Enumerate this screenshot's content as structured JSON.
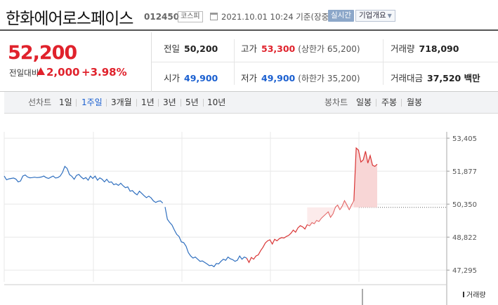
{
  "header": {
    "stock_name": "한화에어로스페이스",
    "stock_code": "012450",
    "market": "코스피",
    "datetime": "2021.10.01 10:24 기준(장중)",
    "realtime_label": "실시간",
    "overview_label": "기업개요"
  },
  "quote": {
    "price": "52,200",
    "change_label": "전일대비",
    "change": "2,000",
    "change_pct": "+3.98%",
    "prev_close_label": "전일",
    "prev_close": "50,200",
    "high_label": "고가",
    "high": "53,300",
    "upper_limit": "(상한가 65,200)",
    "volume_label": "거래량",
    "volume": "718,090",
    "open_label": "시가",
    "open": "49,900",
    "low_label": "저가",
    "low": "49,900",
    "lower_limit": "(하한가 35,200)",
    "trade_value_label": "거래대금",
    "trade_value": "37,520 백만"
  },
  "period_bar": {
    "line_label": "선차트",
    "line_periods": [
      "1일",
      "1주일",
      "3개월",
      "1년",
      "3년",
      "5년",
      "10년"
    ],
    "active_period": "1주일",
    "candle_label": "봉차트",
    "candle_periods": [
      "일봉",
      "주봉",
      "월봉"
    ]
  },
  "colors": {
    "up": "#e0222c",
    "down": "#1a5fd0",
    "line_blue": "#2f6fbf",
    "line_red": "#d93434"
  },
  "chart_data": {
    "type": "line",
    "title": "",
    "xlabel": "",
    "ylabel": "",
    "y_ticks": [
      "53,405",
      "51,877",
      "50,350",
      "48,822",
      "47,295"
    ],
    "ylim": [
      46750,
      53700
    ],
    "baseline": 50200,
    "volume_label": "거래량",
    "grid": true,
    "series": [
      {
        "values": [
          51650,
          51480,
          51520,
          51540,
          51560,
          51510,
          51380,
          51420,
          51650,
          51700,
          51610,
          51570,
          51580,
          51600,
          51580,
          51590,
          51610,
          51650,
          51580,
          51540,
          51600,
          51650,
          51560,
          51580,
          51650,
          51820,
          52100,
          52000,
          51720,
          51640,
          51500,
          51680,
          51730,
          51610,
          51520,
          51580,
          51460,
          51650,
          51540,
          51650,
          51460,
          51570,
          51500,
          51380,
          51500,
          51360,
          51380,
          51250,
          51290,
          51220,
          51320,
          51200,
          51110,
          51150,
          50950,
          50980,
          50860,
          50780,
          50950,
          50850,
          50740,
          50650,
          50720,
          50640,
          50500,
          50430,
          50480,
          50500,
          50400,
          50220,
          49650,
          49500,
          49380,
          49150,
          48950,
          48850,
          48600,
          48570,
          48400,
          48100,
          47950,
          47850,
          47900,
          47800,
          47700,
          47720,
          47650,
          47580,
          47500,
          47520,
          47450,
          47600,
          47580,
          47700,
          47800,
          47750,
          47900,
          47820,
          47780,
          47700,
          47750,
          47950,
          47800,
          47900,
          47850,
          47650,
          47880,
          47800,
          47950,
          48000,
          48200,
          48350,
          48550,
          48650,
          48700,
          48500,
          48720,
          48650,
          48750,
          48800,
          48780,
          48850,
          48900,
          49000,
          49150,
          49050,
          49250,
          49350,
          49300,
          49200,
          49400,
          49350,
          49500,
          49450,
          49600,
          49550,
          49700,
          49800,
          49900,
          50000,
          49750,
          49900,
          50200,
          50300,
          50100,
          50250,
          50500,
          50300,
          50100,
          50300,
          50500,
          52950,
          52850,
          52300,
          52400,
          52800,
          52250,
          52600,
          52150,
          52100,
          52200
        ]
      }
    ]
  }
}
